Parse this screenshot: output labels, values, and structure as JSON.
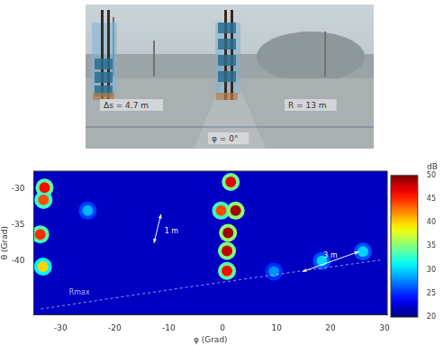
{
  "photo": {
    "labels": [
      "Δs = 4.7 m",
      "R = 13 m",
      "φ = 0°"
    ]
  },
  "chart_data": {
    "type": "heatmap",
    "x_label": "φ (Grad)",
    "y_label": "θ (Grad)",
    "xlim": [
      -35,
      30.5
    ],
    "xticks": [
      -30,
      -20,
      -10,
      0,
      10,
      20,
      30
    ],
    "ylim": [
      -47.5,
      -27.5
    ],
    "yticks": [
      -40,
      -35,
      -30
    ],
    "background": 22,
    "spots": [
      {
        "x": -33,
        "y": -29.8,
        "value": 46
      },
      {
        "x": -33.2,
        "y": -31.5,
        "value": 44
      },
      {
        "x": -33.8,
        "y": -36.3,
        "value": 45
      },
      {
        "x": -33.3,
        "y": -40.8,
        "value": 40
      },
      {
        "x": 1.5,
        "y": -29,
        "value": 47
      },
      {
        "x": -0.3,
        "y": -33,
        "value": 44
      },
      {
        "x": 2.4,
        "y": -33,
        "value": 49
      },
      {
        "x": 1,
        "y": -36.1,
        "value": 49
      },
      {
        "x": 0.8,
        "y": -38.6,
        "value": 48
      },
      {
        "x": 0.8,
        "y": -41.4,
        "value": 46
      },
      {
        "x": 18.4,
        "y": -40,
        "value": 30
      },
      {
        "x": 26,
        "y": -38.7,
        "value": 30
      },
      {
        "x": 9.5,
        "y": -41.5,
        "value": 28
      },
      {
        "x": -25,
        "y": -33,
        "value": 29
      }
    ],
    "annotations": [
      "1 m",
      "3 m",
      "Rmax"
    ],
    "colorbar": {
      "label": "dB",
      "range": [
        20,
        50
      ],
      "ticks": [
        20,
        25,
        30,
        35,
        40,
        45,
        50
      ]
    }
  }
}
